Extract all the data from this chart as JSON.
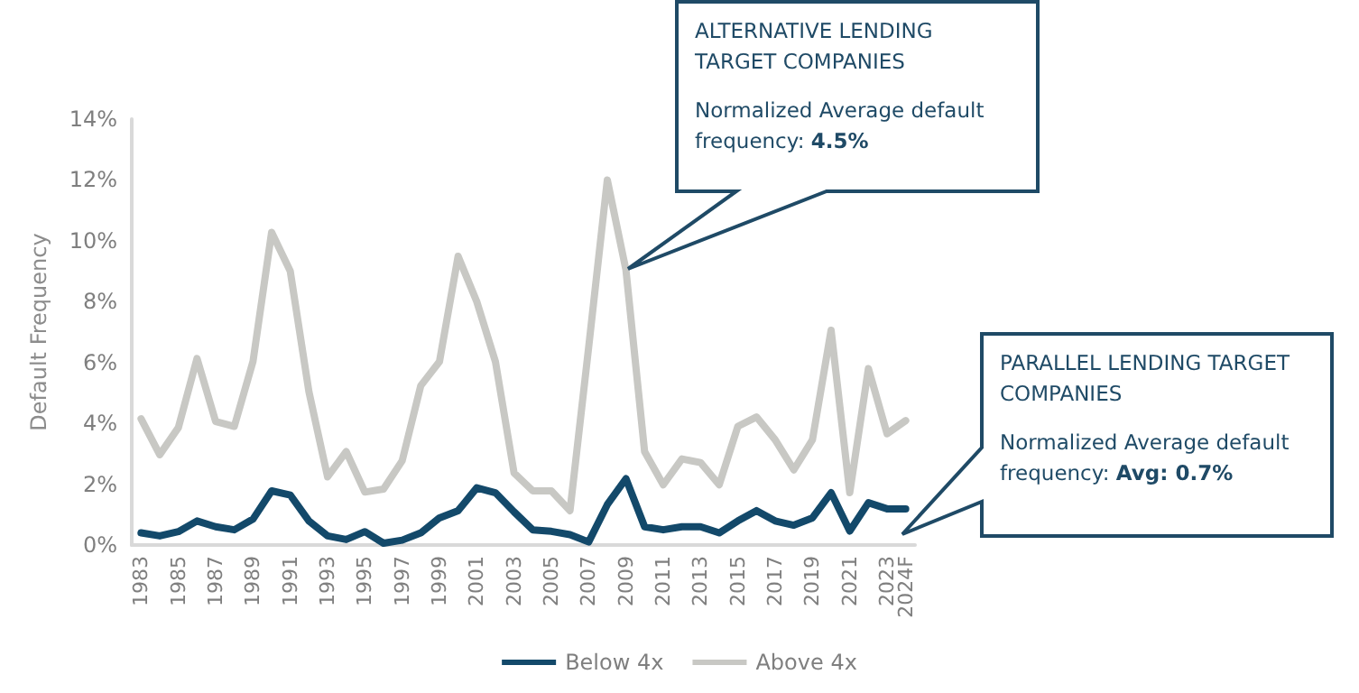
{
  "chart_data": {
    "type": "line",
    "ylabel": "Default Frequency",
    "categories": [
      "1983",
      null,
      "1985",
      null,
      "1987",
      null,
      "1989",
      null,
      "1991",
      null,
      "1993",
      null,
      "1995",
      null,
      "1997",
      null,
      "1999",
      null,
      "2001",
      null,
      "2003",
      null,
      "2005",
      null,
      "2007",
      null,
      "2009",
      null,
      "2011",
      null,
      "2013",
      null,
      "2015",
      null,
      "2017",
      null,
      "2019",
      null,
      "2021",
      null,
      "2023",
      "2024F"
    ],
    "series": [
      {
        "name": "Below 4x",
        "color": "#13496a",
        "values": [
          0.4,
          0.3,
          0.44,
          0.79,
          0.6,
          0.5,
          0.85,
          1.78,
          1.64,
          0.79,
          0.3,
          0.18,
          0.44,
          0.06,
          0.16,
          0.4,
          0.89,
          1.13,
          1.88,
          1.72,
          1.09,
          0.5,
          0.45,
          0.34,
          0.1,
          1.33,
          2.18,
          0.6,
          0.5,
          0.6,
          0.6,
          0.4,
          0.79,
          1.13,
          0.79,
          0.65,
          0.89,
          1.72,
          0.46,
          1.39,
          1.19,
          1.19
        ]
      },
      {
        "name": "Above 4x",
        "color": "#c8c8c4",
        "values": [
          4.15,
          2.97,
          3.86,
          6.13,
          4.06,
          3.9,
          6.03,
          10.28,
          9.0,
          5.04,
          2.24,
          3.07,
          1.74,
          1.84,
          2.77,
          5.24,
          6.03,
          9.49,
          8.0,
          6.03,
          2.37,
          1.78,
          1.78,
          1.13,
          6.5,
          12.0,
          9.04,
          3.07,
          1.98,
          2.83,
          2.71,
          1.98,
          3.9,
          4.21,
          3.46,
          2.47,
          3.46,
          7.06,
          1.72,
          5.8,
          3.66,
          4.09
        ]
      }
    ],
    "ylim": [
      0,
      14
    ],
    "yticks": [
      {
        "value": 0,
        "label": "0%"
      },
      {
        "value": 2,
        "label": "2%"
      },
      {
        "value": 4,
        "label": "4%"
      },
      {
        "value": 6,
        "label": "6%"
      },
      {
        "value": 8,
        "label": "8%"
      },
      {
        "value": 10,
        "label": "10%"
      },
      {
        "value": 12,
        "label": "12%"
      },
      {
        "value": 14,
        "label": "14%"
      }
    ],
    "grid": false,
    "legend": "bottom",
    "marker": "none",
    "line_style": "solid",
    "annotations": [
      "ALTERNATIVE LENDING TARGET COMPANIES\nNormalized Average default frequency: 4.5%",
      "PARALLEL LENDING TARGET COMPANIES\nNormalized Average default frequency: Avg: 0.7%"
    ]
  }
}
